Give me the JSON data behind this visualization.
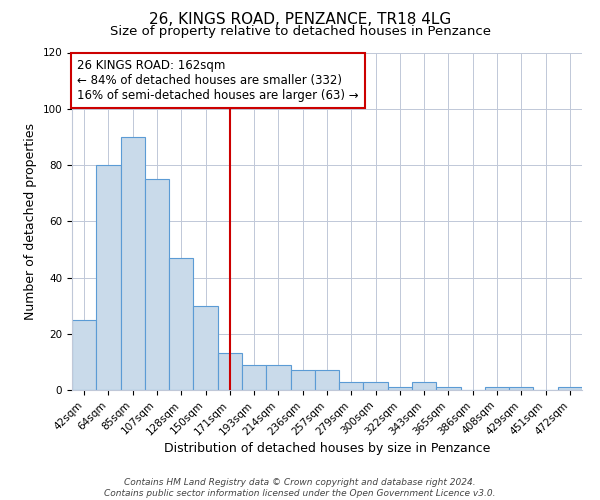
{
  "title": "26, KINGS ROAD, PENZANCE, TR18 4LG",
  "subtitle": "Size of property relative to detached houses in Penzance",
  "xlabel": "Distribution of detached houses by size in Penzance",
  "ylabel": "Number of detached properties",
  "bar_labels": [
    "42sqm",
    "64sqm",
    "85sqm",
    "107sqm",
    "128sqm",
    "150sqm",
    "171sqm",
    "193sqm",
    "214sqm",
    "236sqm",
    "257sqm",
    "279sqm",
    "300sqm",
    "322sqm",
    "343sqm",
    "365sqm",
    "386sqm",
    "408sqm",
    "429sqm",
    "451sqm",
    "472sqm"
  ],
  "bar_values": [
    25,
    80,
    90,
    75,
    47,
    30,
    13,
    9,
    9,
    7,
    7,
    3,
    3,
    1,
    3,
    1,
    0,
    1,
    1,
    0,
    1
  ],
  "bar_color": "#c9daea",
  "bar_edge_color": "#5b9bd5",
  "ylim": [
    0,
    120
  ],
  "yticks": [
    0,
    20,
    40,
    60,
    80,
    100,
    120
  ],
  "vline_x": 6.0,
  "vline_color": "#cc0000",
  "annotation_line1": "26 KINGS ROAD: 162sqm",
  "annotation_line2": "← 84% of detached houses are smaller (332)",
  "annotation_line3": "16% of semi-detached houses are larger (63) →",
  "annotation_box_color": "#ffffff",
  "annotation_box_edge_color": "#cc0000",
  "footer_line1": "Contains HM Land Registry data © Crown copyright and database right 2024.",
  "footer_line2": "Contains public sector information licensed under the Open Government Licence v3.0.",
  "background_color": "#ffffff",
  "grid_color": "#c0c8d8",
  "title_fontsize": 11,
  "subtitle_fontsize": 9.5,
  "axis_label_fontsize": 9,
  "tick_fontsize": 7.5,
  "annotation_fontsize": 8.5,
  "footer_fontsize": 6.5
}
